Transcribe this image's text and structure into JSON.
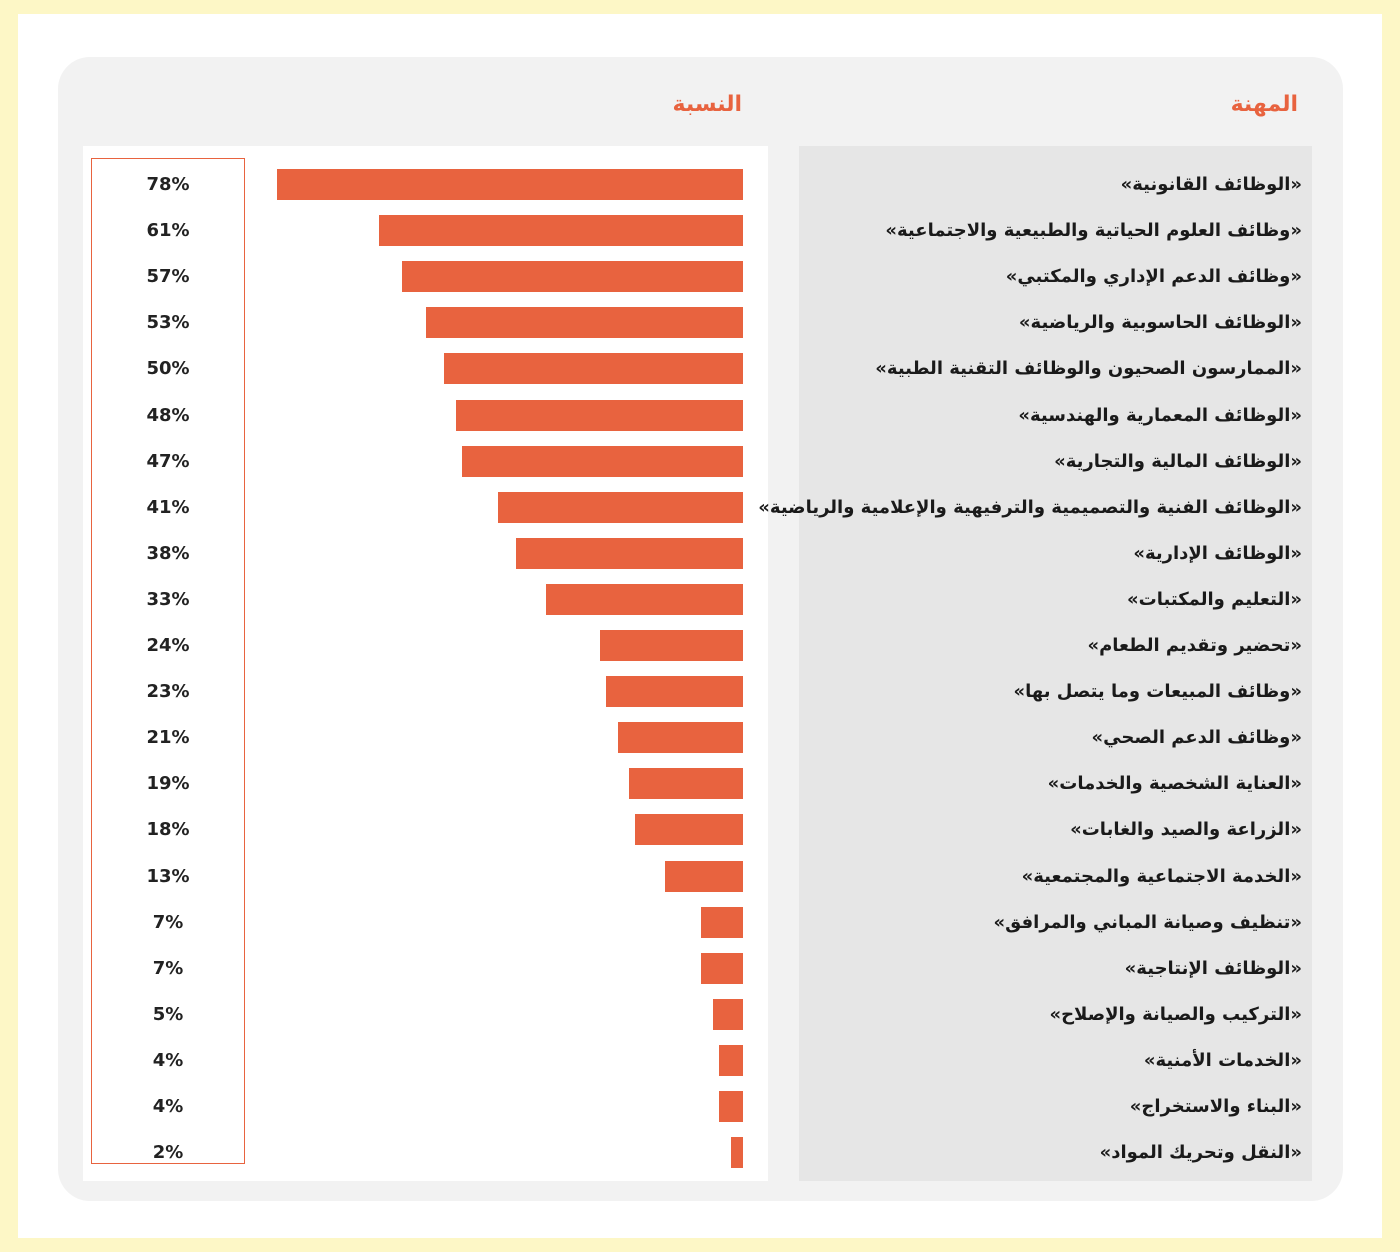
{
  "chart_data": {
    "type": "bar",
    "orientation": "horizontal",
    "header_category": "المهنة",
    "header_value": "النسبة",
    "categories": [
      "«الوظائف القانونية»",
      "«وظائف العلوم الحياتية والطبيعية والاجتماعية»",
      "«وظائف الدعم الإداري والمكتبي»",
      "«الوظائف الحاسوبية والرياضية»",
      "«الممارسون الصحيون والوظائف التقنية الطبية»",
      "«الوظائف المعمارية والهندسية»",
      "«الوظائف المالية والتجارية»",
      "«الوظائف الفنية والتصميمية والترفيهية والإعلامية والرياضية»",
      "«الوظائف الإدارية»",
      "«التعليم والمكتبات»",
      "«تحضير وتقديم الطعام»",
      "«وظائف المبيعات وما يتصل بها»",
      "«وظائف الدعم الصحي»",
      "«العناية الشخصية والخدمات»",
      "«الزراعة والصيد والغابات»",
      "«الخدمة الاجتماعية والمجتمعية»",
      "«تنظيف وصيانة المباني والمرافق»",
      "«الوظائف الإنتاجية»",
      "«التركيب والصيانة والإصلاح»",
      "«الخدمات الأمنية»",
      "«البناء والاستخراج»",
      "«النقل وتحريك المواد»"
    ],
    "value_labels": [
      "78%",
      "61%",
      "57%",
      "53%",
      "50%",
      "48%",
      "47%",
      "41%",
      "38%",
      "33%",
      "24%",
      "23%",
      "21%",
      "19%",
      "18%",
      "13%",
      "7%",
      "7%",
      "5%",
      "4%",
      "4%",
      "2%"
    ],
    "values": [
      78,
      61,
      57,
      53,
      50,
      48,
      47,
      41,
      38,
      33,
      24,
      23,
      21,
      19,
      18,
      13,
      7,
      7,
      5,
      4,
      4,
      2
    ],
    "xlim": [
      0,
      78
    ],
    "colors": {
      "bar": "#e8633f",
      "header": "#e8633f"
    }
  }
}
